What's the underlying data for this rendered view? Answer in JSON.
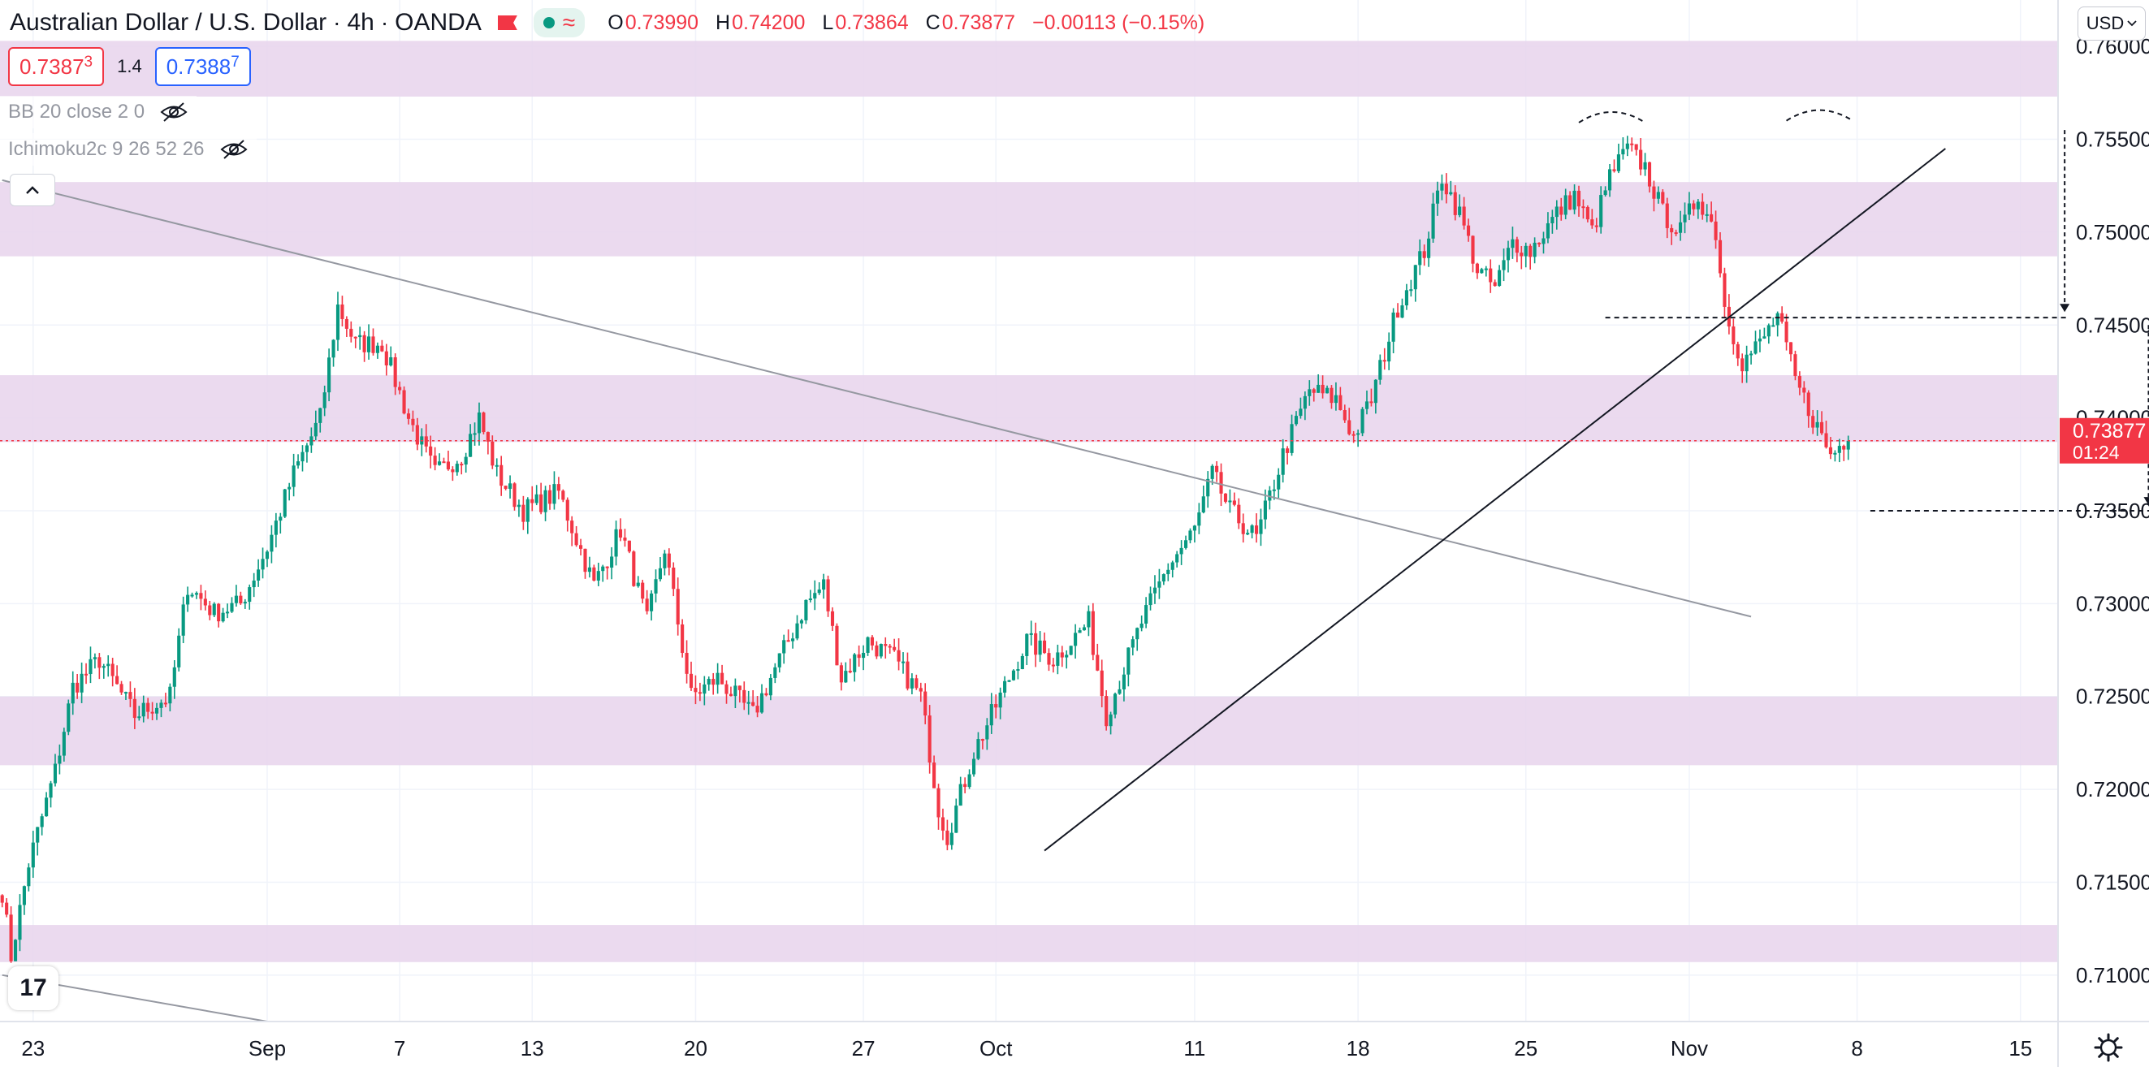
{
  "header": {
    "title": "Australian Dollar / U.S. Dollar",
    "interval": "4h",
    "broker": "OANDA",
    "ohlc": {
      "o_label": "O",
      "o": "0.73990",
      "h_label": "H",
      "h": "0.74200",
      "l_label": "L",
      "l": "0.73864",
      "c_label": "C",
      "c": "0.73877",
      "change": "−0.00113 (−0.15%)"
    },
    "sell_price_main": "0.7387",
    "sell_price_small": "3",
    "spread": "1.4",
    "buy_price_main": "0.7388",
    "buy_price_small": "7"
  },
  "indicators": [
    {
      "label": "BB 20 close 2 0",
      "icon": "eye-off-icon"
    },
    {
      "label": "Ichimoku2c 9 26 52 26",
      "icon": "eye-off-icon"
    }
  ],
  "currency_selector": {
    "label": "USD"
  },
  "last_price": {
    "value": "0.73877",
    "countdown": "01:24",
    "color": "#f23645"
  },
  "colors": {
    "up": "#089981",
    "down": "#f23645",
    "zone": "#e8d3ec",
    "trendline": "#9598a1",
    "grid": "#f0f3fa"
  },
  "chart_data": {
    "type": "candlestick",
    "title": "",
    "xlabel": "",
    "ylabel": "",
    "ylim": [
      0.7075,
      0.7625
    ],
    "yticks": [
      0.71,
      0.715,
      0.72,
      0.725,
      0.73,
      0.735,
      0.74,
      0.745,
      0.75,
      0.755,
      0.76
    ],
    "ytick_labels": [
      "0.71000",
      "0.71500",
      "0.72000",
      "0.72500",
      "0.73000",
      "0.73500",
      "0.74000",
      "0.74500",
      "0.75000",
      "0.75500",
      "0.76000"
    ],
    "xticks": [
      {
        "label": "23",
        "bar": 7
      },
      {
        "label": "Sep",
        "bar": 60
      },
      {
        "label": "7",
        "bar": 90
      },
      {
        "label": "13",
        "bar": 120
      },
      {
        "label": "20",
        "bar": 157
      },
      {
        "label": "27",
        "bar": 195
      },
      {
        "label": "Oct",
        "bar": 225
      },
      {
        "label": "11",
        "bar": 270
      },
      {
        "label": "18",
        "bar": 307
      },
      {
        "label": "25",
        "bar": 345
      },
      {
        "label": "Nov",
        "bar": 382
      },
      {
        "label": "8",
        "bar": 420
      },
      {
        "label": "15",
        "bar": 457
      }
    ],
    "bars_total": 466,
    "anchors": [
      [
        0,
        0.7145
      ],
      [
        2,
        0.711
      ],
      [
        6,
        0.716
      ],
      [
        12,
        0.721
      ],
      [
        16,
        0.7255
      ],
      [
        22,
        0.727
      ],
      [
        30,
        0.724
      ],
      [
        38,
        0.725
      ],
      [
        42,
        0.731
      ],
      [
        48,
        0.7295
      ],
      [
        54,
        0.73
      ],
      [
        60,
        0.733
      ],
      [
        66,
        0.737
      ],
      [
        72,
        0.74
      ],
      [
        76,
        0.746
      ],
      [
        80,
        0.744
      ],
      [
        86,
        0.744
      ],
      [
        92,
        0.74
      ],
      [
        98,
        0.737
      ],
      [
        104,
        0.738
      ],
      [
        108,
        0.74
      ],
      [
        112,
        0.737
      ],
      [
        118,
        0.735
      ],
      [
        126,
        0.736
      ],
      [
        134,
        0.731
      ],
      [
        140,
        0.734
      ],
      [
        146,
        0.729
      ],
      [
        150,
        0.733
      ],
      [
        156,
        0.725
      ],
      [
        162,
        0.726
      ],
      [
        170,
        0.724
      ],
      [
        176,
        0.727
      ],
      [
        182,
        0.73
      ],
      [
        186,
        0.731
      ],
      [
        190,
        0.726
      ],
      [
        196,
        0.728
      ],
      [
        202,
        0.727
      ],
      [
        208,
        0.725
      ],
      [
        212,
        0.719
      ],
      [
        214,
        0.7175
      ],
      [
        220,
        0.722
      ],
      [
        226,
        0.725
      ],
      [
        232,
        0.728
      ],
      [
        238,
        0.727
      ],
      [
        246,
        0.729
      ],
      [
        250,
        0.724
      ],
      [
        258,
        0.729
      ],
      [
        264,
        0.732
      ],
      [
        270,
        0.734
      ],
      [
        274,
        0.737
      ],
      [
        278,
        0.735
      ],
      [
        284,
        0.7335
      ],
      [
        290,
        0.738
      ],
      [
        296,
        0.7415
      ],
      [
        302,
        0.741
      ],
      [
        306,
        0.739
      ],
      [
        310,
        0.741
      ],
      [
        316,
        0.746
      ],
      [
        322,
        0.749
      ],
      [
        326,
        0.753
      ],
      [
        330,
        0.751
      ],
      [
        334,
        0.748
      ],
      [
        338,
        0.747
      ],
      [
        342,
        0.7495
      ],
      [
        346,
        0.749
      ],
      [
        352,
        0.751
      ],
      [
        356,
        0.752
      ],
      [
        360,
        0.75
      ],
      [
        364,
        0.753
      ],
      [
        368,
        0.7545
      ],
      [
        372,
        0.7535
      ],
      [
        376,
        0.751
      ],
      [
        380,
        0.75
      ],
      [
        384,
        0.752
      ],
      [
        388,
        0.75
      ],
      [
        390,
        0.746
      ],
      [
        394,
        0.743
      ],
      [
        398,
        0.744
      ],
      [
        402,
        0.7455
      ],
      [
        406,
        0.742
      ],
      [
        410,
        0.74
      ],
      [
        414,
        0.738
      ],
      [
        416,
        0.7385
      ],
      [
        418,
        0.739
      ]
    ],
    "zones": [
      [
        0.7573,
        0.7603
      ],
      [
        0.7487,
        0.7527
      ],
      [
        0.7387,
        0.7423
      ],
      [
        0.7213,
        0.725
      ],
      [
        0.7107,
        0.7127
      ]
    ],
    "last_price": 0.73877,
    "dashed_levels": [
      {
        "y": 0.7454,
        "x_from": 363,
        "x_to": 468
      },
      {
        "y": 0.735,
        "x_from": 423,
        "x_to": 507
      }
    ],
    "arrows": [
      {
        "x": 467,
        "y_from": 0.7555,
        "y_to": 0.7457
      },
      {
        "x": 486,
        "y_from": 0.745,
        "y_to": 0.7353
      }
    ],
    "trendlines": [
      {
        "from": [
          0,
          0.7528
        ],
        "to": [
          396,
          0.7293
        ],
        "color": "#9598a1"
      },
      {
        "from": [
          0,
          0.71
        ],
        "to": [
          60,
          0.7075
        ],
        "color": "#9598a1"
      },
      {
        "from": [
          236,
          0.7167
        ],
        "to": [
          440,
          0.7545
        ],
        "color": "#131722"
      }
    ],
    "arcs": [
      {
        "x_from": 357,
        "x_to": 372,
        "y": 0.7566
      },
      {
        "x_from": 404,
        "x_to": 419,
        "y": 0.7567
      }
    ]
  }
}
